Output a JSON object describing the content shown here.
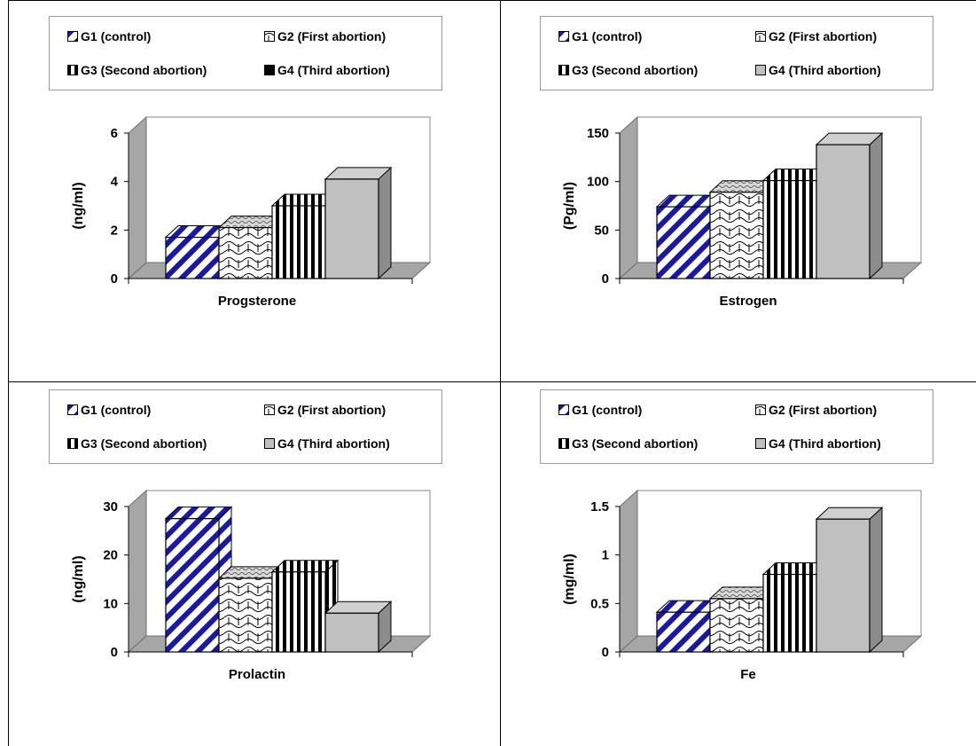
{
  "legend_items": [
    "G1 (control)",
    "G2 (First abortion)",
    "G3 (Second abortion)",
    "G4 (Third abortion)"
  ],
  "chart_data": [
    {
      "type": "bar",
      "categories": [
        "Progsterone"
      ],
      "xlabel": "Progsterone",
      "ylabel": "(ng/ml)",
      "ylim": [
        0,
        6
      ],
      "yticks": [
        0,
        2,
        4,
        6
      ],
      "ytick_labels": [
        "0",
        "2",
        "4",
        "6"
      ],
      "series": [
        {
          "name": "G1 (control)",
          "values": [
            1.7
          ]
        },
        {
          "name": "G2 (First abortion)",
          "values": [
            2.1
          ]
        },
        {
          "name": "G3 (Second abortion)",
          "values": [
            3.0
          ]
        },
        {
          "name": "G4 (Third abortion)",
          "values": [
            4.1
          ]
        }
      ],
      "legend_position": "top",
      "grid": false
    },
    {
      "type": "bar",
      "categories": [
        "Estrogen"
      ],
      "xlabel": "Estrogen",
      "ylabel": "(Pg/ml)",
      "ylim": [
        0,
        150
      ],
      "yticks": [
        0,
        50,
        100,
        150
      ],
      "ytick_labels": [
        "0",
        "50",
        "100",
        "150"
      ],
      "series": [
        {
          "name": "G1 (control)",
          "values": [
            74
          ]
        },
        {
          "name": "G2 (First abortion)",
          "values": [
            89
          ]
        },
        {
          "name": "G3 (Second abortion)",
          "values": [
            101
          ]
        },
        {
          "name": "G4 (Third abortion)",
          "values": [
            138
          ]
        }
      ],
      "legend_position": "top",
      "grid": false
    },
    {
      "type": "bar",
      "categories": [
        "Prolactin"
      ],
      "xlabel": "Prolactin",
      "ylabel": "(ng/ml)",
      "ylim": [
        0,
        30
      ],
      "yticks": [
        0,
        10,
        20,
        30
      ],
      "ytick_labels": [
        "0",
        "10",
        "20",
        "30"
      ],
      "series": [
        {
          "name": "G1 (control)",
          "values": [
            27.5
          ]
        },
        {
          "name": "G2 (First abortion)",
          "values": [
            15.2
          ]
        },
        {
          "name": "G3 (Second abortion)",
          "values": [
            16.5
          ]
        },
        {
          "name": "G4 (Third abortion)",
          "values": [
            8
          ]
        }
      ],
      "legend_position": "top",
      "grid": false
    },
    {
      "type": "bar",
      "categories": [
        "Fe"
      ],
      "xlabel": "Fe",
      "ylabel": "(mg/ml)",
      "ylim": [
        0,
        1.5
      ],
      "yticks": [
        0,
        0.5,
        1,
        1.5
      ],
      "ytick_labels": [
        "0",
        "0.5",
        "1",
        "1.5"
      ],
      "series": [
        {
          "name": "G1 (control)",
          "values": [
            0.41
          ]
        },
        {
          "name": "G2 (First abortion)",
          "values": [
            0.55
          ]
        },
        {
          "name": "G3 (Second abortion)",
          "values": [
            0.8
          ]
        },
        {
          "name": "G4 (Third abortion)",
          "values": [
            1.37
          ]
        }
      ],
      "legend_position": "top",
      "grid": false
    }
  ],
  "colors": {
    "g1_stripe": "#1a1a9e",
    "g4_fill": "#c0c0c0",
    "wall": "#a6a6a6",
    "border": "#000000"
  }
}
